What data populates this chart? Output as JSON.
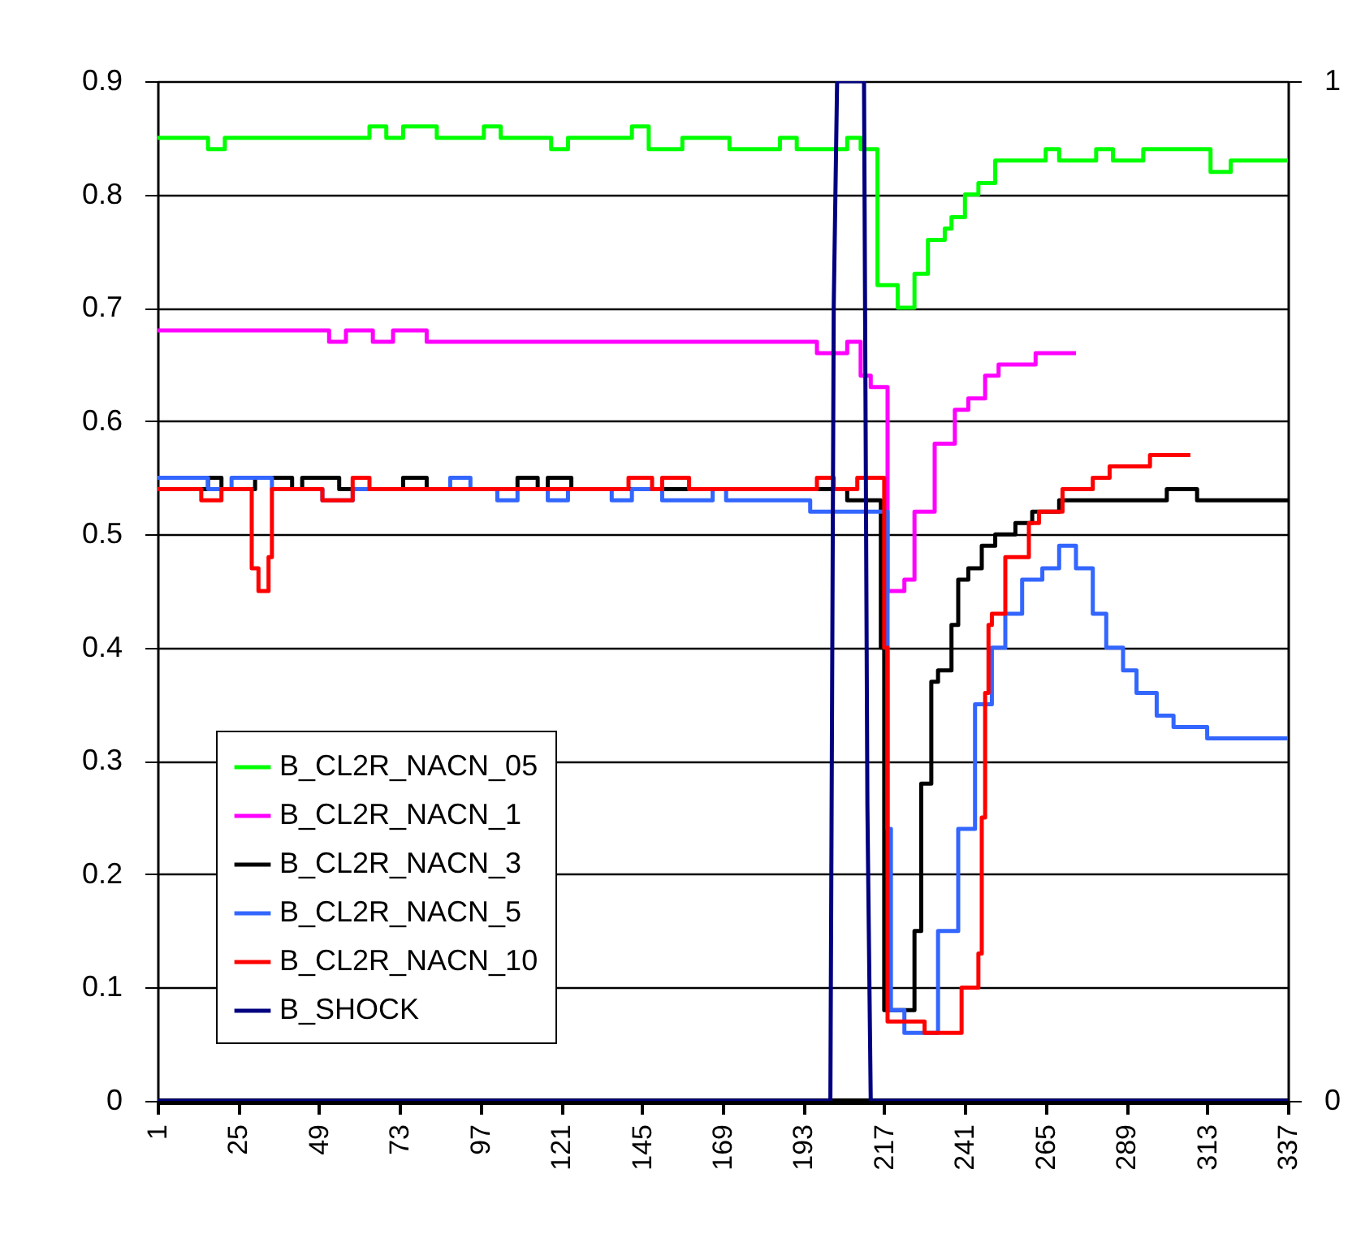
{
  "chart_data": {
    "type": "step",
    "xlim": [
      1,
      337
    ],
    "xticks": [
      1,
      25,
      49,
      73,
      97,
      121,
      145,
      169,
      193,
      217,
      241,
      265,
      289,
      313,
      337
    ],
    "ylim": [
      0,
      0.9
    ],
    "yticks": [
      0,
      0.1,
      0.2,
      0.3,
      0.4,
      0.5,
      0.6,
      0.7,
      0.8,
      0.9
    ],
    "y2lim": [
      0,
      1
    ],
    "y2ticks": [
      0,
      1
    ],
    "grid": "y",
    "legend": "bottom left",
    "series": [
      {
        "name": "B_CL2R_NACN_05",
        "color": "#00ff00",
        "x": [
          1,
          16,
          21,
          64,
          69,
          74,
          84,
          98,
          103,
          118,
          123,
          142,
          147,
          157,
          171,
          186,
          191,
          206,
          210,
          215,
          221,
          226,
          230,
          235,
          237,
          241,
          245,
          250,
          265,
          269,
          280,
          285,
          294,
          314,
          320,
          337
        ],
        "values": [
          0.85,
          0.84,
          0.85,
          0.86,
          0.85,
          0.86,
          0.85,
          0.86,
          0.85,
          0.84,
          0.85,
          0.86,
          0.84,
          0.85,
          0.84,
          0.85,
          0.84,
          0.85,
          0.84,
          0.72,
          0.7,
          0.73,
          0.76,
          0.77,
          0.78,
          0.8,
          0.81,
          0.83,
          0.84,
          0.83,
          0.84,
          0.83,
          0.84,
          0.82,
          0.83,
          0.83
        ]
      },
      {
        "name": "B_CL2R_NACN_1",
        "color": "#ff00ff",
        "x": [
          1,
          52,
          57,
          65,
          71,
          81,
          197,
          206,
          210,
          213,
          218,
          223,
          226,
          232,
          238,
          242,
          247,
          251,
          262,
          274
        ],
        "values": [
          0.68,
          0.67,
          0.68,
          0.67,
          0.68,
          0.67,
          0.66,
          0.67,
          0.64,
          0.63,
          0.45,
          0.46,
          0.52,
          0.58,
          0.61,
          0.62,
          0.64,
          0.65,
          0.66,
          0.66
        ]
      },
      {
        "name": "B_CL2R_NACN_3",
        "color": "#000000",
        "x": [
          1,
          16,
          20,
          30,
          41,
          44,
          55,
          74,
          81,
          108,
          114,
          117,
          124,
          206,
          216,
          217,
          226,
          228,
          231,
          233,
          237,
          239,
          242,
          246,
          250,
          256,
          261,
          269,
          301,
          310,
          337
        ],
        "values": [
          0.54,
          0.55,
          0.54,
          0.55,
          0.54,
          0.55,
          0.54,
          0.55,
          0.54,
          0.55,
          0.54,
          0.55,
          0.54,
          0.53,
          0.4,
          0.08,
          0.15,
          0.28,
          0.37,
          0.38,
          0.42,
          0.46,
          0.47,
          0.49,
          0.5,
          0.51,
          0.52,
          0.53,
          0.54,
          0.53,
          0.53
        ]
      },
      {
        "name": "B_CL2R_NACN_5",
        "color": "#3366ff",
        "x": [
          1,
          16,
          23,
          35,
          50,
          59,
          88,
          94,
          102,
          108,
          117,
          123,
          136,
          142,
          151,
          166,
          170,
          195,
          218,
          219,
          223,
          233,
          239,
          244,
          249,
          253,
          258,
          264,
          269,
          274,
          279,
          283,
          288,
          292,
          298,
          303,
          313,
          337
        ],
        "values": [
          0.55,
          0.54,
          0.55,
          0.54,
          0.53,
          0.54,
          0.55,
          0.54,
          0.53,
          0.54,
          0.53,
          0.54,
          0.53,
          0.54,
          0.53,
          0.54,
          0.53,
          0.52,
          0.24,
          0.08,
          0.06,
          0.15,
          0.24,
          0.35,
          0.4,
          0.43,
          0.46,
          0.47,
          0.49,
          0.47,
          0.43,
          0.4,
          0.38,
          0.36,
          0.34,
          0.33,
          0.32,
          0.32
        ]
      },
      {
        "name": "B_CL2R_NACN_10",
        "color": "#ff0000",
        "x": [
          1,
          14,
          20,
          29,
          31,
          34,
          35,
          50,
          59,
          64,
          141,
          148,
          151,
          159,
          197,
          202,
          209,
          217,
          218,
          229,
          240,
          245,
          246,
          247,
          248,
          249,
          253,
          260,
          263,
          270,
          279,
          284,
          296,
          308
        ],
        "values": [
          0.54,
          0.53,
          0.54,
          0.47,
          0.45,
          0.48,
          0.54,
          0.53,
          0.55,
          0.54,
          0.55,
          0.54,
          0.55,
          0.54,
          0.55,
          0.54,
          0.55,
          0.4,
          0.07,
          0.06,
          0.1,
          0.13,
          0.25,
          0.36,
          0.42,
          0.43,
          0.48,
          0.51,
          0.52,
          0.54,
          0.55,
          0.56,
          0.57,
          0.57
        ]
      },
      {
        "name": "B_SHOCK",
        "color": "#000080",
        "type": "line",
        "axis": "y2",
        "x": [
          1,
          201,
          202,
          203,
          211,
          212,
          213,
          337
        ],
        "values": [
          0,
          0,
          0.78,
          1,
          1,
          0.29,
          0,
          0
        ]
      }
    ]
  }
}
